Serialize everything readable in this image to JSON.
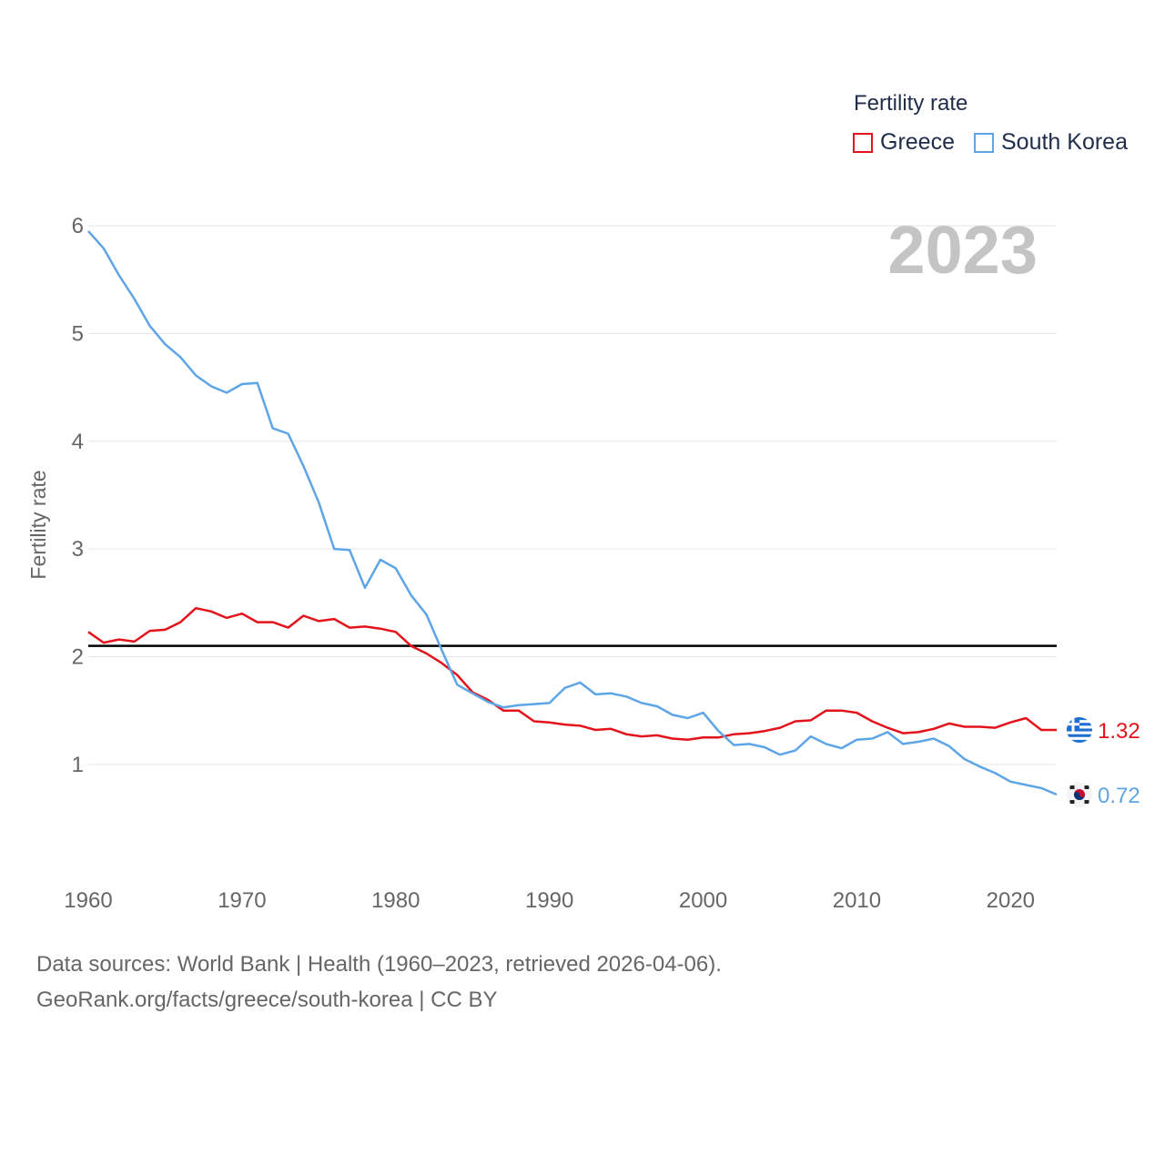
{
  "legend": {
    "title": "Fertility rate",
    "entries": [
      {
        "name": "Greece",
        "color": "#e4131b"
      },
      {
        "name": "South Korea",
        "color": "#5da5e6"
      }
    ]
  },
  "year_watermark": "2023",
  "footer": {
    "line1": "Data sources: World Bank | Health (1960–2023, retrieved 2026-04-06).",
    "line2": "GeoRank.org/facts/greece/south-korea | CC BY"
  },
  "flags": {
    "greece": "greece-flag-icon",
    "south_korea": "south-korea-flag-icon"
  },
  "chart_data": {
    "type": "line",
    "title": "Fertility rate",
    "xlabel": "",
    "ylabel": "Fertility rate",
    "xlim": [
      1960,
      2023
    ],
    "ylim": [
      0.45,
      6.0
    ],
    "xticks": [
      1960,
      1970,
      1980,
      1990,
      2000,
      2010,
      2020
    ],
    "yticks": [
      1,
      2,
      3,
      4,
      5,
      6
    ],
    "grid": true,
    "reference_line": {
      "value": 2.1,
      "color": "#000000"
    },
    "x": [
      1960,
      1961,
      1962,
      1963,
      1964,
      1965,
      1966,
      1967,
      1968,
      1969,
      1970,
      1971,
      1972,
      1973,
      1974,
      1975,
      1976,
      1977,
      1978,
      1979,
      1980,
      1981,
      1982,
      1983,
      1984,
      1985,
      1986,
      1987,
      1988,
      1989,
      1990,
      1991,
      1992,
      1993,
      1994,
      1995,
      1996,
      1997,
      1998,
      1999,
      2000,
      2001,
      2002,
      2003,
      2004,
      2005,
      2006,
      2007,
      2008,
      2009,
      2010,
      2011,
      2012,
      2013,
      2014,
      2015,
      2016,
      2017,
      2018,
      2019,
      2020,
      2021,
      2022,
      2023
    ],
    "series": [
      {
        "name": "Greece",
        "color": "#e4131b",
        "end_label": "1.32",
        "values": [
          2.23,
          2.13,
          2.16,
          2.14,
          2.24,
          2.25,
          2.32,
          2.45,
          2.42,
          2.36,
          2.4,
          2.32,
          2.32,
          2.27,
          2.38,
          2.33,
          2.35,
          2.27,
          2.28,
          2.26,
          2.23,
          2.1,
          2.03,
          1.94,
          1.83,
          1.67,
          1.6,
          1.5,
          1.5,
          1.4,
          1.39,
          1.37,
          1.36,
          1.32,
          1.33,
          1.28,
          1.26,
          1.27,
          1.24,
          1.23,
          1.25,
          1.25,
          1.28,
          1.29,
          1.31,
          1.34,
          1.4,
          1.41,
          1.5,
          1.5,
          1.48,
          1.4,
          1.34,
          1.29,
          1.3,
          1.33,
          1.38,
          1.35,
          1.35,
          1.34,
          1.39,
          1.43,
          1.32,
          1.32
        ]
      },
      {
        "name": "South Korea",
        "color": "#5da5e6",
        "end_label": "0.72",
        "values": [
          5.95,
          5.79,
          5.54,
          5.32,
          5.07,
          4.9,
          4.78,
          4.61,
          4.51,
          4.45,
          4.53,
          4.54,
          4.12,
          4.07,
          3.77,
          3.43,
          3.0,
          2.99,
          2.64,
          2.9,
          2.82,
          2.57,
          2.39,
          2.06,
          1.74,
          1.66,
          1.58,
          1.53,
          1.55,
          1.56,
          1.57,
          1.71,
          1.76,
          1.65,
          1.66,
          1.63,
          1.57,
          1.54,
          1.46,
          1.43,
          1.48,
          1.31,
          1.18,
          1.19,
          1.16,
          1.09,
          1.13,
          1.26,
          1.19,
          1.15,
          1.23,
          1.24,
          1.3,
          1.19,
          1.21,
          1.24,
          1.17,
          1.05,
          0.98,
          0.92,
          0.84,
          0.81,
          0.78,
          0.72
        ]
      }
    ]
  }
}
